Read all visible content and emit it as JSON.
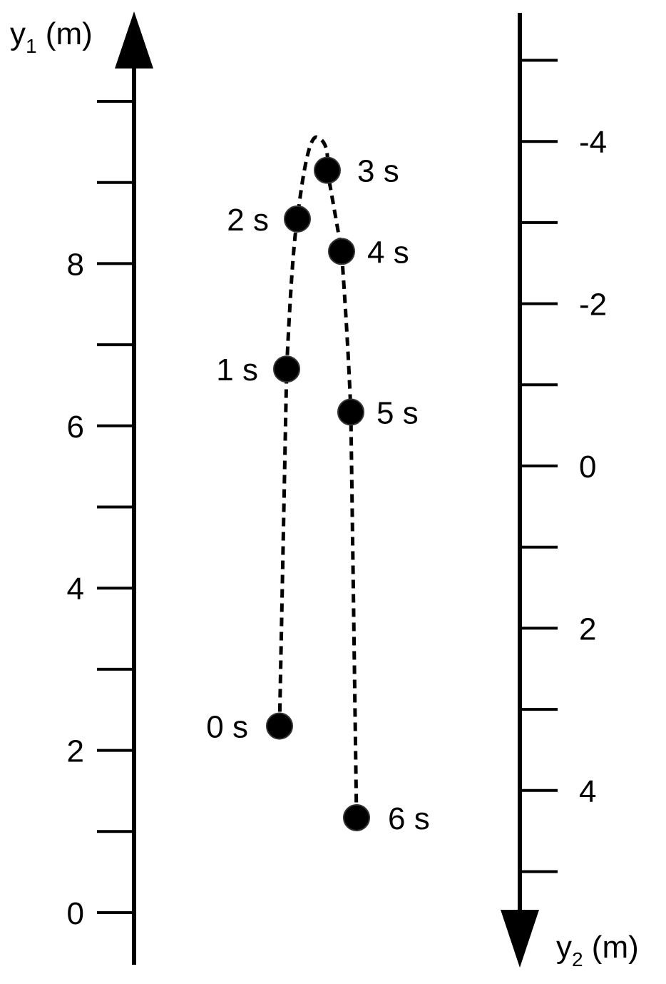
{
  "axis_left": {
    "title": "y",
    "subscript": "1",
    "unit": " (m)",
    "direction": "up",
    "tick_labels": [
      {
        "value": 0,
        "text": "0"
      },
      {
        "value": 2,
        "text": "2"
      },
      {
        "value": 4,
        "text": "4"
      },
      {
        "value": 6,
        "text": "6"
      },
      {
        "value": 8,
        "text": "8"
      }
    ]
  },
  "axis_right": {
    "title": "y",
    "subscript": "2",
    "unit": " (m)",
    "direction": "down",
    "tick_labels": [
      {
        "value": -4,
        "text": "-4"
      },
      {
        "value": -2,
        "text": "-2"
      },
      {
        "value": 0,
        "text": "0"
      },
      {
        "value": 2,
        "text": "2"
      },
      {
        "value": 4,
        "text": "4"
      }
    ]
  },
  "trajectory": {
    "points": [
      {
        "label": "0 s",
        "t": 0,
        "y1": 2.3
      },
      {
        "label": "1 s",
        "t": 1,
        "y1": 6.7
      },
      {
        "label": "2 s",
        "t": 2,
        "y1": 8.55
      },
      {
        "label": "3 s",
        "t": 3,
        "y1": 9.15
      },
      {
        "label": "4 s",
        "t": 4,
        "y1": 8.15
      },
      {
        "label": "5 s",
        "t": 5,
        "y1": 6.17
      },
      {
        "label": "6 s",
        "t": 6,
        "y1": 1.17
      }
    ],
    "apex_y1": 9.55
  },
  "colors": {
    "ink": "#000000",
    "background": "#ffffff"
  }
}
